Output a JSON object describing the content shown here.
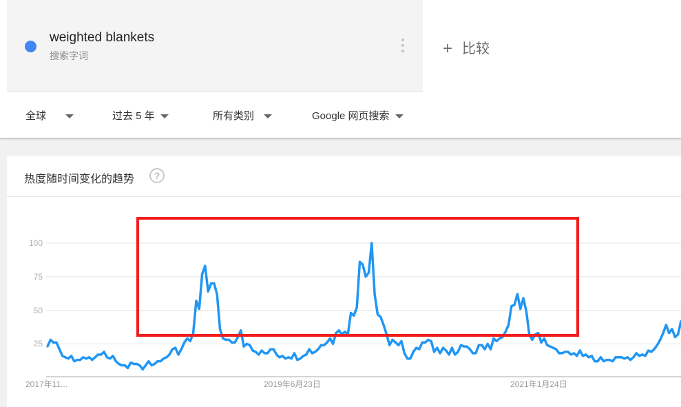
{
  "term": {
    "name": "weighted blankets",
    "subtitle": "搜索字词",
    "color": "#4285f4"
  },
  "compare": {
    "label": "比较",
    "icon": "plus-icon"
  },
  "filters": [
    {
      "label": "全球"
    },
    {
      "label": "过去 5 年"
    },
    {
      "label": "所有类别"
    },
    {
      "label": "Google 网页搜索"
    }
  ],
  "card": {
    "title": "热度随时间变化的趋势",
    "help_icon": "question-mark-icon",
    "help_label": "?"
  },
  "annotation": {
    "type": "highlight-rectangle",
    "color": "#f01e1e"
  },
  "chart_data": {
    "type": "line",
    "grid": true,
    "ylim": [
      0,
      100
    ],
    "yticks": [
      "25",
      "50",
      "75",
      "100"
    ],
    "xticks": [
      "2017年11...",
      "2019年6月23日",
      "2021年1月24日"
    ],
    "series": [
      {
        "color": "#2196f3",
        "values": [
          23,
          28,
          26,
          26,
          21,
          16,
          15,
          14,
          16,
          12,
          13,
          13,
          15,
          14,
          15,
          13,
          15,
          17,
          17,
          19,
          15,
          14,
          16,
          12,
          10,
          9,
          9,
          7,
          11,
          10,
          10,
          9,
          6,
          9,
          12,
          9,
          10,
          12,
          12,
          14,
          15,
          17,
          21,
          22,
          17,
          21,
          26,
          29,
          27,
          33,
          57,
          51,
          77,
          83,
          64,
          70,
          70,
          62,
          36,
          29,
          28,
          28,
          26,
          26,
          30,
          35,
          23,
          25,
          24,
          20,
          19,
          17,
          20,
          18,
          18,
          21,
          21,
          17,
          15,
          16,
          14,
          15,
          14,
          18,
          13,
          14,
          16,
          17,
          21,
          18,
          19,
          21,
          24,
          24,
          26,
          29,
          25,
          33,
          35,
          32,
          34,
          32,
          48,
          46,
          52,
          86,
          84,
          75,
          78,
          100,
          62,
          47,
          45,
          39,
          32,
          24,
          28,
          26,
          24,
          27,
          18,
          14,
          14,
          19,
          22,
          21,
          26,
          26,
          28,
          27,
          19,
          22,
          18,
          22,
          20,
          17,
          22,
          17,
          19,
          24,
          23,
          23,
          21,
          18,
          18,
          24,
          24,
          21,
          25,
          21,
          29,
          27,
          29,
          30,
          34,
          39,
          53,
          54,
          62,
          51,
          59,
          49,
          32,
          28,
          32,
          33,
          26,
          29,
          24,
          23,
          22,
          21,
          18,
          18,
          19,
          19,
          17,
          18,
          16,
          20,
          16,
          17,
          15,
          16,
          12,
          12,
          15,
          12,
          13,
          13,
          12,
          15,
          15,
          15,
          14,
          15,
          13,
          15,
          18,
          16,
          17,
          16,
          20,
          19,
          21,
          24,
          28,
          33,
          39,
          33,
          36,
          30,
          32,
          42
        ]
      }
    ]
  }
}
